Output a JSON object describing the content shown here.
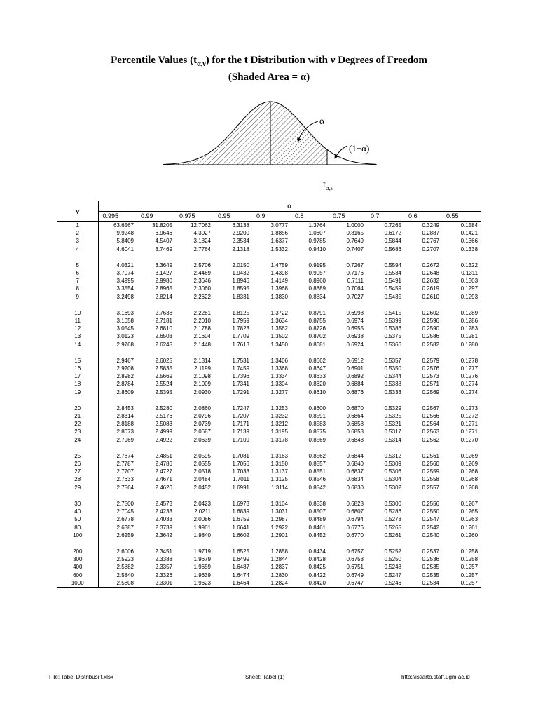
{
  "title": {
    "line1_pre": "Percentile Values (t",
    "line1_sub": "α,ν",
    "line1_post": ") for the t Distribution with ν Degrees of Freedom",
    "line2": "(Shaded Area = α)"
  },
  "figure": {
    "alpha_label": "α",
    "one_minus_alpha_label": "(1−α)",
    "t_label": "t",
    "t_label_sub": "α,ν"
  },
  "table": {
    "nu_header": "ν",
    "alpha_header": "α",
    "columns": [
      "0.995",
      "0.99",
      "0.975",
      "0.95",
      "0.9",
      "0.8",
      "0.75",
      "0.7",
      "0.6",
      "0.55"
    ],
    "groups": [
      [
        [
          "1",
          "63.6567",
          "31.8205",
          "12.7062",
          "6.3138",
          "3.0777",
          "1.3764",
          "1.0000",
          "0.7265",
          "0.3249",
          "0.1584"
        ],
        [
          "2",
          "9.9248",
          "6.9646",
          "4.3027",
          "2.9200",
          "1.8856",
          "1.0607",
          "0.8165",
          "0.6172",
          "0.2887",
          "0.1421"
        ],
        [
          "3",
          "5.8409",
          "4.5407",
          "3.1824",
          "2.3534",
          "1.6377",
          "0.9785",
          "0.7649",
          "0.5844",
          "0.2767",
          "0.1366"
        ],
        [
          "4",
          "4.6041",
          "3.7469",
          "2.7764",
          "2.1318",
          "1.5332",
          "0.9410",
          "0.7407",
          "0.5686",
          "0.2707",
          "0.1338"
        ]
      ],
      [
        [
          "5",
          "4.0321",
          "3.3649",
          "2.5706",
          "2.0150",
          "1.4759",
          "0.9195",
          "0.7267",
          "0.5594",
          "0.2672",
          "0.1322"
        ],
        [
          "6",
          "3.7074",
          "3.1427",
          "2.4469",
          "1.9432",
          "1.4398",
          "0.9057",
          "0.7176",
          "0.5534",
          "0.2648",
          "0.1311"
        ],
        [
          "7",
          "3.4995",
          "2.9980",
          "2.3646",
          "1.8946",
          "1.4149",
          "0.8960",
          "0.7111",
          "0.5491",
          "0.2632",
          "0.1303"
        ],
        [
          "8",
          "3.3554",
          "2.8965",
          "2.3060",
          "1.8595",
          "1.3968",
          "0.8889",
          "0.7064",
          "0.5459",
          "0.2619",
          "0.1297"
        ],
        [
          "9",
          "3.2498",
          "2.8214",
          "2.2622",
          "1.8331",
          "1.3830",
          "0.8834",
          "0.7027",
          "0.5435",
          "0.2610",
          "0.1293"
        ]
      ],
      [
        [
          "10",
          "3.1693",
          "2.7638",
          "2.2281",
          "1.8125",
          "1.3722",
          "0.8791",
          "0.6998",
          "0.5415",
          "0.2602",
          "0.1289"
        ],
        [
          "11",
          "3.1058",
          "2.7181",
          "2.2010",
          "1.7959",
          "1.3634",
          "0.8755",
          "0.6974",
          "0.5399",
          "0.2596",
          "0.1286"
        ],
        [
          "12",
          "3.0545",
          "2.6810",
          "2.1788",
          "1.7823",
          "1.3562",
          "0.8726",
          "0.6955",
          "0.5386",
          "0.2590",
          "0.1283"
        ],
        [
          "13",
          "3.0123",
          "2.6503",
          "2.1604",
          "1.7709",
          "1.3502",
          "0.8702",
          "0.6938",
          "0.5375",
          "0.2586",
          "0.1281"
        ],
        [
          "14",
          "2.9768",
          "2.6245",
          "2.1448",
          "1.7613",
          "1.3450",
          "0.8681",
          "0.6924",
          "0.5366",
          "0.2582",
          "0.1280"
        ]
      ],
      [
        [
          "15",
          "2.9467",
          "2.6025",
          "2.1314",
          "1.7531",
          "1.3406",
          "0.8662",
          "0.6912",
          "0.5357",
          "0.2579",
          "0.1278"
        ],
        [
          "16",
          "2.9208",
          "2.5835",
          "2.1199",
          "1.7459",
          "1.3368",
          "0.8647",
          "0.6901",
          "0.5350",
          "0.2576",
          "0.1277"
        ],
        [
          "17",
          "2.8982",
          "2.5669",
          "2.1098",
          "1.7396",
          "1.3334",
          "0.8633",
          "0.6892",
          "0.5344",
          "0.2573",
          "0.1276"
        ],
        [
          "18",
          "2.8784",
          "2.5524",
          "2.1009",
          "1.7341",
          "1.3304",
          "0.8620",
          "0.6884",
          "0.5338",
          "0.2571",
          "0.1274"
        ],
        [
          "19",
          "2.8609",
          "2.5395",
          "2.0930",
          "1.7291",
          "1.3277",
          "0.8610",
          "0.6876",
          "0.5333",
          "0.2569",
          "0.1274"
        ]
      ],
      [
        [
          "20",
          "2.8453",
          "2.5280",
          "2.0860",
          "1.7247",
          "1.3253",
          "0.8600",
          "0.6870",
          "0.5329",
          "0.2567",
          "0.1273"
        ],
        [
          "21",
          "2.8314",
          "2.5176",
          "2.0796",
          "1.7207",
          "1.3232",
          "0.8591",
          "0.6864",
          "0.5325",
          "0.2566",
          "0.1272"
        ],
        [
          "22",
          "2.8188",
          "2.5083",
          "2.0739",
          "1.7171",
          "1.3212",
          "0.8583",
          "0.6858",
          "0.5321",
          "0.2564",
          "0.1271"
        ],
        [
          "23",
          "2.8073",
          "2.4999",
          "2.0687",
          "1.7139",
          "1.3195",
          "0.8575",
          "0.6853",
          "0.5317",
          "0.2563",
          "0.1271"
        ],
        [
          "24",
          "2.7969",
          "2.4922",
          "2.0639",
          "1.7109",
          "1.3178",
          "0.8569",
          "0.6848",
          "0.5314",
          "0.2562",
          "0.1270"
        ]
      ],
      [
        [
          "25",
          "2.7874",
          "2.4851",
          "2.0595",
          "1.7081",
          "1.3163",
          "0.8562",
          "0.6844",
          "0.5312",
          "0.2561",
          "0.1269"
        ],
        [
          "26",
          "2.7787",
          "2.4786",
          "2.0555",
          "1.7056",
          "1.3150",
          "0.8557",
          "0.6840",
          "0.5309",
          "0.2560",
          "0.1269"
        ],
        [
          "27",
          "2.7707",
          "2.4727",
          "2.0518",
          "1.7033",
          "1.3137",
          "0.8551",
          "0.6837",
          "0.5306",
          "0.2559",
          "0.1268"
        ],
        [
          "28",
          "2.7633",
          "2.4671",
          "2.0484",
          "1.7011",
          "1.3125",
          "0.8546",
          "0.6834",
          "0.5304",
          "0.2558",
          "0.1268"
        ],
        [
          "29",
          "2.7564",
          "2.4620",
          "2.0452",
          "1.6991",
          "1.3114",
          "0.8542",
          "0.6830",
          "0.5302",
          "0.2557",
          "0.1268"
        ]
      ],
      [
        [
          "30",
          "2.7500",
          "2.4573",
          "2.0423",
          "1.6973",
          "1.3104",
          "0.8538",
          "0.6828",
          "0.5300",
          "0.2556",
          "0.1267"
        ],
        [
          "40",
          "2.7045",
          "2.4233",
          "2.0211",
          "1.6839",
          "1.3031",
          "0.8507",
          "0.6807",
          "0.5286",
          "0.2550",
          "0.1265"
        ],
        [
          "50",
          "2.6778",
          "2.4033",
          "2.0086",
          "1.6759",
          "1.2987",
          "0.8489",
          "0.6794",
          "0.5278",
          "0.2547",
          "0.1263"
        ],
        [
          "80",
          "2.6387",
          "2.3739",
          "1.9901",
          "1.6641",
          "1.2922",
          "0.8461",
          "0.6776",
          "0.5265",
          "0.2542",
          "0.1261"
        ],
        [
          "100",
          "2.6259",
          "2.3642",
          "1.9840",
          "1.6602",
          "1.2901",
          "0.8452",
          "0.6770",
          "0.5261",
          "0.2540",
          "0.1260"
        ]
      ],
      [
        [
          "200",
          "2.6006",
          "2.3451",
          "1.9719",
          "1.6525",
          "1.2858",
          "0.8434",
          "0.6757",
          "0.5252",
          "0.2537",
          "0.1258"
        ],
        [
          "300",
          "2.5923",
          "2.3388",
          "1.9679",
          "1.6499",
          "1.2844",
          "0.8428",
          "0.6753",
          "0.5250",
          "0.2536",
          "0.1258"
        ],
        [
          "400",
          "2.5882",
          "2.3357",
          "1.9659",
          "1.6487",
          "1.2837",
          "0.8425",
          "0.6751",
          "0.5248",
          "0.2535",
          "0.1257"
        ],
        [
          "600",
          "2.5840",
          "2.3326",
          "1.9639",
          "1.6474",
          "1.2830",
          "0.8422",
          "0.6749",
          "0.5247",
          "0.2535",
          "0.1257"
        ],
        [
          "1000",
          "2.5808",
          "2.3301",
          "1.9623",
          "1.6464",
          "1.2824",
          "0.8420",
          "0.6747",
          "0.5246",
          "0.2534",
          "0.1257"
        ]
      ]
    ]
  },
  "footer": {
    "file": "File: Tabel Distribusi t.xlsx",
    "sheet": "Sheet: Tabel (1)",
    "url": "http://istiarto.staff.ugm.ac.id"
  }
}
